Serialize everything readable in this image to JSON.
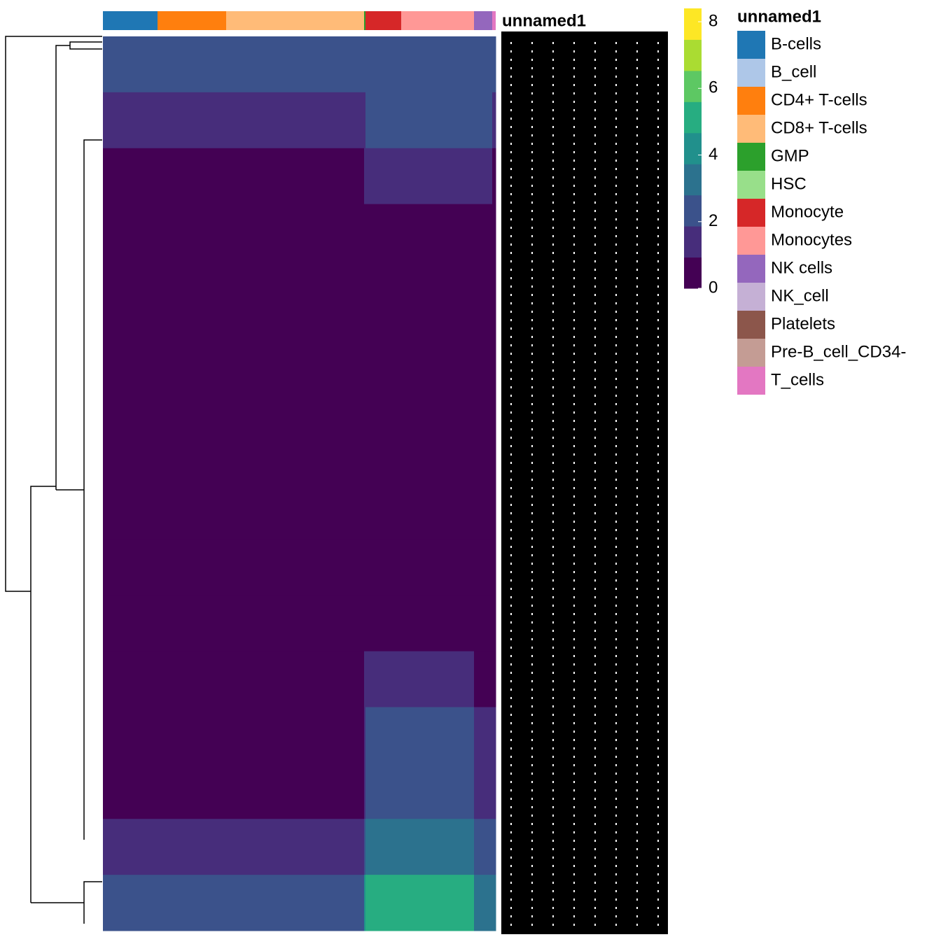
{
  "chart_data": {
    "type": "heatmap",
    "annotation_name": "unnamed1",
    "categories": [
      "B-cells",
      "B_cell",
      "CD4+ T-cells",
      "CD8+ T-cells",
      "GMP",
      "HSC",
      "Monocyte",
      "Monocytes",
      "NK cells",
      "NK_cell",
      "Platelets",
      "Pre-B_cell_CD34-",
      "T_cells"
    ],
    "category_colors": [
      "#1f77b4",
      "#aec7e8",
      "#ff7f0e",
      "#ffbb78",
      "#2ca02c",
      "#98df8a",
      "#d62728",
      "#ff9896",
      "#9467bd",
      "#c5b0d5",
      "#8c564b",
      "#c49c94",
      "#e377c2"
    ],
    "column_counts": [
      78,
      0,
      98,
      197,
      2,
      0,
      51,
      104,
      26,
      0,
      0,
      0,
      5
    ],
    "values": [
      [
        2.5,
        null,
        2,
        2,
        2,
        null,
        2,
        2,
        2.5,
        null,
        null,
        null,
        2.5
      ],
      [
        1.5,
        null,
        1,
        1,
        1.5,
        null,
        2.5,
        2.5,
        2,
        null,
        null,
        null,
        1.5
      ],
      [
        0.8,
        null,
        0.7,
        0.7,
        1,
        null,
        1.2,
        1,
        1,
        null,
        null,
        null,
        0.8
      ],
      [
        0.5,
        null,
        0.4,
        0.4,
        0.5,
        null,
        0.5,
        0.5,
        0.5,
        null,
        null,
        null,
        0.5
      ],
      [
        0.3,
        null,
        0.3,
        0.3,
        0.3,
        null,
        0.4,
        0.4,
        0.3,
        null,
        null,
        null,
        0.3
      ],
      [
        0.3,
        null,
        0.3,
        0.3,
        0.3,
        null,
        0.4,
        0.4,
        0.3,
        null,
        null,
        null,
        0.3
      ],
      [
        0.3,
        null,
        0.3,
        0.3,
        0.3,
        null,
        0.4,
        0.4,
        0.3,
        null,
        null,
        null,
        0.3
      ],
      [
        0.3,
        null,
        0.3,
        0.3,
        0.3,
        null,
        0.4,
        0.4,
        0.3,
        null,
        null,
        null,
        0.3
      ],
      [
        0.3,
        null,
        0.3,
        0.3,
        0.3,
        null,
        0.4,
        0.4,
        0.3,
        null,
        null,
        null,
        0.3
      ],
      [
        0.3,
        null,
        0.3,
        0.3,
        0.3,
        null,
        0.4,
        0.4,
        0.3,
        null,
        null,
        null,
        0.3
      ],
      [
        0.4,
        null,
        0.4,
        0.4,
        0.4,
        null,
        0.5,
        0.5,
        0.4,
        null,
        null,
        null,
        0.4
      ],
      [
        0.8,
        null,
        0.8,
        0.8,
        1,
        null,
        1.2,
        1.2,
        0.8,
        null,
        null,
        null,
        0.8
      ],
      [
        0.9,
        null,
        0.9,
        0.9,
        1.5,
        null,
        2.5,
        2.5,
        1,
        null,
        null,
        null,
        1
      ],
      [
        0.9,
        null,
        0.9,
        0.9,
        1.5,
        null,
        2.5,
        2.5,
        1.5,
        null,
        null,
        null,
        1
      ],
      [
        1.5,
        null,
        1.2,
        1.2,
        2.5,
        null,
        3.5,
        3.5,
        2,
        null,
        null,
        null,
        2
      ],
      [
        2.5,
        null,
        2.5,
        2.5,
        4,
        null,
        5.5,
        5.5,
        3,
        null,
        null,
        null,
        3
      ]
    ],
    "colorscale": [
      "#440154",
      "#472d7b",
      "#3b528b",
      "#2c728e",
      "#21908c",
      "#27ad81",
      "#5dc863",
      "#aadc32",
      "#fde725"
    ],
    "zlim": [
      0,
      8.4
    ],
    "zticks": [
      0,
      2,
      4,
      6,
      8
    ]
  }
}
